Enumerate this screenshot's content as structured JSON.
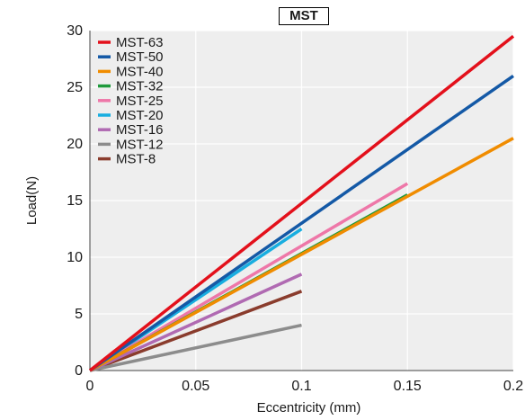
{
  "chart_data": {
    "type": "line",
    "title": "MST",
    "xlabel": "Eccentricity (mm)",
    "ylabel": "Load(N)",
    "xlim": [
      0,
      0.2
    ],
    "ylim": [
      0,
      30
    ],
    "xticks": [
      "0",
      "0.05",
      "0.1",
      "0.15",
      "0.2"
    ],
    "yticks": [
      "0",
      "5",
      "10",
      "15",
      "20",
      "25",
      "30"
    ],
    "grid": true,
    "legend_position": "top-left",
    "series": [
      {
        "name": "MST-63",
        "color": "#e3101b",
        "x": [
          0,
          0.2
        ],
        "y": [
          0,
          29.5
        ]
      },
      {
        "name": "MST-50",
        "color": "#1459a6",
        "x": [
          0,
          0.2
        ],
        "y": [
          0,
          26.0
        ]
      },
      {
        "name": "MST-40",
        "color": "#f08c00",
        "x": [
          0,
          0.2
        ],
        "y": [
          0,
          20.5
        ]
      },
      {
        "name": "MST-32",
        "color": "#1f9a3c",
        "x": [
          0,
          0.15
        ],
        "y": [
          0,
          15.5
        ]
      },
      {
        "name": "MST-25",
        "color": "#ee77a8",
        "x": [
          0,
          0.15
        ],
        "y": [
          0,
          16.5
        ]
      },
      {
        "name": "MST-20",
        "color": "#18aee0",
        "x": [
          0,
          0.1
        ],
        "y": [
          0,
          12.5
        ]
      },
      {
        "name": "MST-16",
        "color": "#b06ab2",
        "x": [
          0,
          0.1
        ],
        "y": [
          0,
          8.5
        ]
      },
      {
        "name": "MST-12",
        "color": "#8c8c8c",
        "x": [
          0,
          0.1
        ],
        "y": [
          0,
          4.0
        ]
      },
      {
        "name": "MST-8",
        "color": "#8a3c2d",
        "x": [
          0,
          0.1
        ],
        "y": [
          0,
          7.0
        ]
      }
    ]
  }
}
